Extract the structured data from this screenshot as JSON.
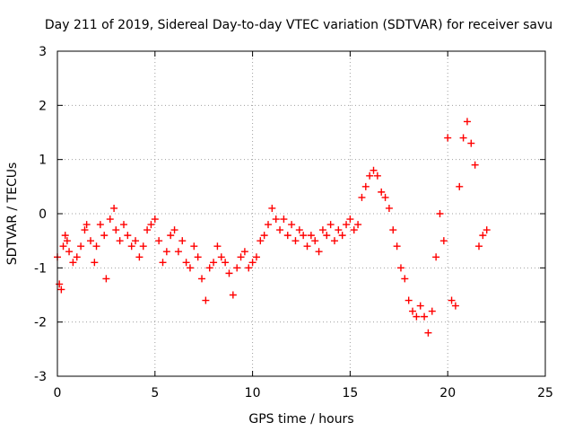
{
  "chart_data": {
    "type": "scatter",
    "title": "Day 211 of 2019, Sidereal Day-to-day VTEC variation (SDTVAR) for receiver savu",
    "xlabel": "GPS time / hours",
    "ylabel": "SDTVAR / TECUs",
    "xlim": [
      0,
      25
    ],
    "ylim": [
      -3,
      3
    ],
    "xticks": [
      0,
      5,
      10,
      15,
      20,
      25
    ],
    "yticks": [
      -3,
      -2,
      -1,
      0,
      1,
      2,
      3
    ],
    "grid": true,
    "marker": "+",
    "series": [
      {
        "name": "savu",
        "color": "#ff0000",
        "x": [
          0.0,
          0.1,
          0.2,
          0.3,
          0.4,
          0.5,
          0.6,
          0.8,
          1.0,
          1.2,
          1.4,
          1.5,
          1.7,
          1.9,
          2.0,
          2.2,
          2.4,
          2.5,
          2.7,
          2.9,
          3.0,
          3.2,
          3.4,
          3.6,
          3.8,
          4.0,
          4.2,
          4.4,
          4.6,
          4.8,
          5.0,
          5.2,
          5.4,
          5.6,
          5.8,
          6.0,
          6.2,
          6.4,
          6.6,
          6.8,
          7.0,
          7.2,
          7.4,
          7.6,
          7.8,
          8.0,
          8.2,
          8.4,
          8.6,
          8.8,
          9.0,
          9.2,
          9.4,
          9.6,
          9.8,
          10.0,
          10.2,
          10.4,
          10.6,
          10.8,
          11.0,
          11.2,
          11.4,
          11.6,
          11.8,
          12.0,
          12.2,
          12.4,
          12.6,
          12.8,
          13.0,
          13.2,
          13.4,
          13.6,
          13.8,
          14.0,
          14.2,
          14.4,
          14.6,
          14.8,
          15.0,
          15.2,
          15.4,
          15.6,
          15.8,
          16.0,
          16.2,
          16.4,
          16.6,
          16.8,
          17.0,
          17.2,
          17.4,
          17.6,
          17.8,
          18.0,
          18.2,
          18.4,
          18.6,
          18.8,
          19.0,
          19.2,
          19.4,
          19.6,
          19.8,
          20.0,
          20.2,
          20.4,
          20.6,
          20.8,
          21.0,
          21.2,
          21.4,
          21.6,
          21.8,
          22.0
        ],
        "y": [
          -0.8,
          -1.3,
          -1.4,
          -0.6,
          -0.4,
          -0.5,
          -0.7,
          -0.9,
          -0.8,
          -0.6,
          -0.3,
          -0.2,
          -0.5,
          -0.9,
          -0.6,
          -0.2,
          -0.4,
          -1.2,
          -0.1,
          0.1,
          -0.3,
          -0.5,
          -0.2,
          -0.4,
          -0.6,
          -0.5,
          -0.8,
          -0.6,
          -0.3,
          -0.2,
          -0.1,
          -0.5,
          -0.9,
          -0.7,
          -0.4,
          -0.3,
          -0.7,
          -0.5,
          -0.9,
          -1.0,
          -0.6,
          -0.8,
          -1.2,
          -1.6,
          -1.0,
          -0.9,
          -0.6,
          -0.8,
          -0.9,
          -1.1,
          -1.5,
          -1.0,
          -0.8,
          -0.7,
          -1.0,
          -0.9,
          -0.8,
          -0.5,
          -0.4,
          -0.2,
          0.1,
          -0.1,
          -0.3,
          -0.1,
          -0.4,
          -0.2,
          -0.5,
          -0.3,
          -0.4,
          -0.6,
          -0.4,
          -0.5,
          -0.7,
          -0.3,
          -0.4,
          -0.2,
          -0.5,
          -0.3,
          -0.4,
          -0.2,
          -0.1,
          -0.3,
          -0.2,
          0.3,
          0.5,
          0.7,
          0.8,
          0.7,
          0.4,
          0.3,
          0.1,
          -0.3,
          -0.6,
          -1.0,
          -1.2,
          -1.6,
          -1.8,
          -1.9,
          -1.7,
          -1.9,
          -2.2,
          -1.8,
          -0.8,
          0.0,
          -0.5,
          1.4,
          -1.6,
          -1.7,
          0.5,
          1.4,
          1.7,
          1.3,
          0.9,
          -0.6,
          -0.4,
          -0.3
        ]
      }
    ]
  }
}
